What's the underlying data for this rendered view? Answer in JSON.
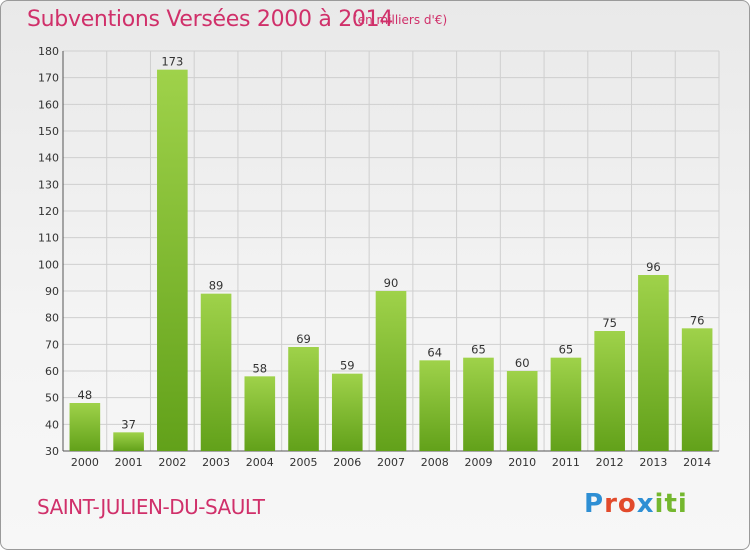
{
  "header": {
    "title": "Subventions Versées 2000 à 2014",
    "subtitle": "(en milliers d'€)"
  },
  "footer": {
    "commune": "SAINT-JULIEN-DU-SAULT",
    "logo_text": "Proxiti"
  },
  "colors": {
    "title": "#d0306a",
    "bar_light": "#9fd24a",
    "bar_dark": "#62a11a",
    "grid": "#cfcfcf"
  },
  "chart_data": {
    "type": "bar",
    "title": "Subventions Versées 2000 à 2014",
    "subtitle": "(en milliers d'€)",
    "categories": [
      "2000",
      "2001",
      "2002",
      "2003",
      "2004",
      "2005",
      "2006",
      "2007",
      "2008",
      "2009",
      "2010",
      "2011",
      "2012",
      "2013",
      "2014"
    ],
    "values": [
      48,
      37,
      173,
      89,
      58,
      69,
      59,
      90,
      64,
      65,
      60,
      65,
      75,
      96,
      76
    ],
    "ylim": [
      30,
      180
    ],
    "yticks": [
      30,
      40,
      50,
      60,
      70,
      80,
      90,
      100,
      110,
      120,
      130,
      140,
      150,
      160,
      170,
      180
    ],
    "grid": true,
    "legend": "none"
  }
}
